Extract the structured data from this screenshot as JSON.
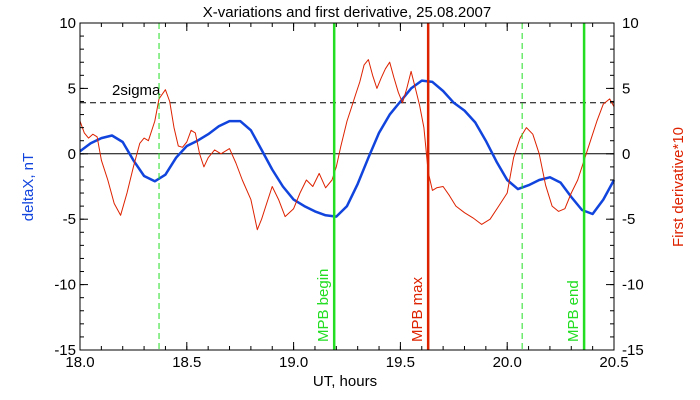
{
  "chart_data": {
    "type": "line",
    "title": "X-variations and first derivative, 25.08.2007",
    "xlabel": "UT, hours",
    "ylabel_left": "deltaX, nT",
    "ylabel_right": "First derivative*10",
    "xlim": [
      18.0,
      20.5
    ],
    "ylim_left": [
      -15,
      10
    ],
    "ylim_right": [
      -15,
      10
    ],
    "x_ticks": [
      18.0,
      18.5,
      19.0,
      19.5,
      20.0,
      20.5
    ],
    "x_tick_labels": [
      "18.0",
      "18.5",
      "19.0",
      "19.5",
      "20.0",
      "20.5"
    ],
    "y_ticks": [
      -15,
      -10,
      -5,
      0,
      5,
      10
    ],
    "y_tick_labels": [
      "-15",
      "-10",
      "-5",
      "0",
      "5",
      "10"
    ],
    "colors": {
      "deltaX": "#1144dd",
      "derivative": "#dd2200",
      "mpb_begin_end": "#22dd22",
      "mpb_max": "#dd2200",
      "dashed_green": "#22dd22",
      "sigma_line": "#000000",
      "axis_label_left": "#1144dd",
      "axis_label_right": "#dd2200"
    },
    "series": [
      {
        "key": "deltaX",
        "axis": "left",
        "x": [
          18.0,
          18.05,
          18.1,
          18.15,
          18.2,
          18.25,
          18.3,
          18.35,
          18.4,
          18.45,
          18.5,
          18.55,
          18.6,
          18.65,
          18.7,
          18.75,
          18.8,
          18.85,
          18.9,
          18.95,
          19.0,
          19.05,
          19.1,
          19.15,
          19.2,
          19.25,
          19.3,
          19.35,
          19.4,
          19.45,
          19.5,
          19.55,
          19.6,
          19.65,
          19.7,
          19.75,
          19.8,
          19.85,
          19.9,
          19.95,
          20.0,
          20.05,
          20.1,
          20.15,
          20.2,
          20.25,
          20.3,
          20.35,
          20.4,
          20.45,
          20.5
        ],
        "y": [
          0.2,
          0.8,
          1.2,
          1.4,
          0.9,
          -0.5,
          -1.7,
          -2.1,
          -1.6,
          -0.3,
          0.6,
          1.0,
          1.5,
          2.1,
          2.5,
          2.5,
          1.8,
          0.3,
          -1.2,
          -2.5,
          -3.5,
          -4.0,
          -4.4,
          -4.7,
          -4.8,
          -4.0,
          -2.3,
          -0.3,
          1.6,
          3.0,
          4.0,
          5.0,
          5.6,
          5.5,
          4.8,
          3.9,
          3.3,
          2.4,
          1.0,
          -0.6,
          -2.0,
          -2.7,
          -2.4,
          -2.0,
          -1.8,
          -2.2,
          -3.3,
          -4.3,
          -4.6,
          -3.5,
          -2.0
        ]
      },
      {
        "key": "derivative",
        "axis": "right",
        "x": [
          18.0,
          18.02,
          18.04,
          18.06,
          18.08,
          18.1,
          18.13,
          18.16,
          18.19,
          18.22,
          18.25,
          18.28,
          18.3,
          18.32,
          18.35,
          18.37,
          18.4,
          18.42,
          18.44,
          18.46,
          18.48,
          18.5,
          18.52,
          18.54,
          18.56,
          18.58,
          18.6,
          18.63,
          18.66,
          18.7,
          18.73,
          18.76,
          18.8,
          18.83,
          18.85,
          18.87,
          18.9,
          18.93,
          18.96,
          19.0,
          19.03,
          19.06,
          19.09,
          19.12,
          19.15,
          19.18,
          19.2,
          19.22,
          19.25,
          19.27,
          19.29,
          19.31,
          19.33,
          19.35,
          19.37,
          19.39,
          19.41,
          19.43,
          19.45,
          19.47,
          19.49,
          19.51,
          19.53,
          19.55,
          19.57,
          19.59,
          19.61,
          19.63,
          19.65,
          19.67,
          19.7,
          19.73,
          19.76,
          19.8,
          19.84,
          19.88,
          19.92,
          19.96,
          20.0,
          20.03,
          20.06,
          20.09,
          20.12,
          20.15,
          20.18,
          20.21,
          20.24,
          20.27,
          20.3,
          20.33,
          20.36,
          20.39,
          20.42,
          20.45,
          20.48,
          20.5
        ],
        "y": [
          2.5,
          1.6,
          1.2,
          1.5,
          1.3,
          -0.5,
          -2.0,
          -3.8,
          -4.7,
          -3.0,
          -1.0,
          0.8,
          1.2,
          1.0,
          2.5,
          4.2,
          4.9,
          4.0,
          2.0,
          0.6,
          0.5,
          0.9,
          1.8,
          1.6,
          0.0,
          -1.0,
          -0.3,
          0.3,
          0.0,
          0.4,
          -0.7,
          -2.0,
          -3.5,
          -5.8,
          -5.0,
          -4.0,
          -2.5,
          -3.5,
          -4.8,
          -4.2,
          -3.0,
          -2.0,
          -2.5,
          -1.5,
          -2.6,
          -2.0,
          -1.0,
          0.5,
          2.5,
          3.5,
          4.5,
          5.5,
          6.8,
          7.2,
          6.0,
          5.0,
          5.8,
          6.5,
          7.0,
          5.8,
          4.7,
          3.9,
          5.0,
          6.3,
          5.0,
          3.7,
          2.0,
          -1.4,
          -2.8,
          -2.6,
          -2.5,
          -3.2,
          -4.0,
          -4.5,
          -4.9,
          -5.4,
          -5.0,
          -4.0,
          -3.0,
          -0.3,
          1.2,
          2.0,
          1.5,
          0.0,
          -2.4,
          -4.0,
          -4.4,
          -4.2,
          -3.0,
          -2.0,
          -0.5,
          1.0,
          2.5,
          3.8,
          4.2,
          3.6
        ]
      }
    ],
    "reference_lines": [
      {
        "label": "2sigma",
        "y": 3.9,
        "style": "dashed"
      },
      {
        "label": "",
        "y": 0,
        "style": "solid"
      }
    ],
    "vertical_markers": [
      {
        "label": "",
        "x": 18.37,
        "style": "dashed",
        "color_key": "dashed_green"
      },
      {
        "label": "MPB begin",
        "x": 19.19,
        "style": "solid",
        "color_key": "mpb_begin_end"
      },
      {
        "label": "MPB max",
        "x": 19.63,
        "style": "solid",
        "color_key": "mpb_max"
      },
      {
        "label": "",
        "x": 20.07,
        "style": "dashed",
        "color_key": "dashed_green"
      },
      {
        "label": "MPB end",
        "x": 20.36,
        "style": "solid",
        "color_key": "mpb_begin_end"
      }
    ],
    "grid": false
  }
}
